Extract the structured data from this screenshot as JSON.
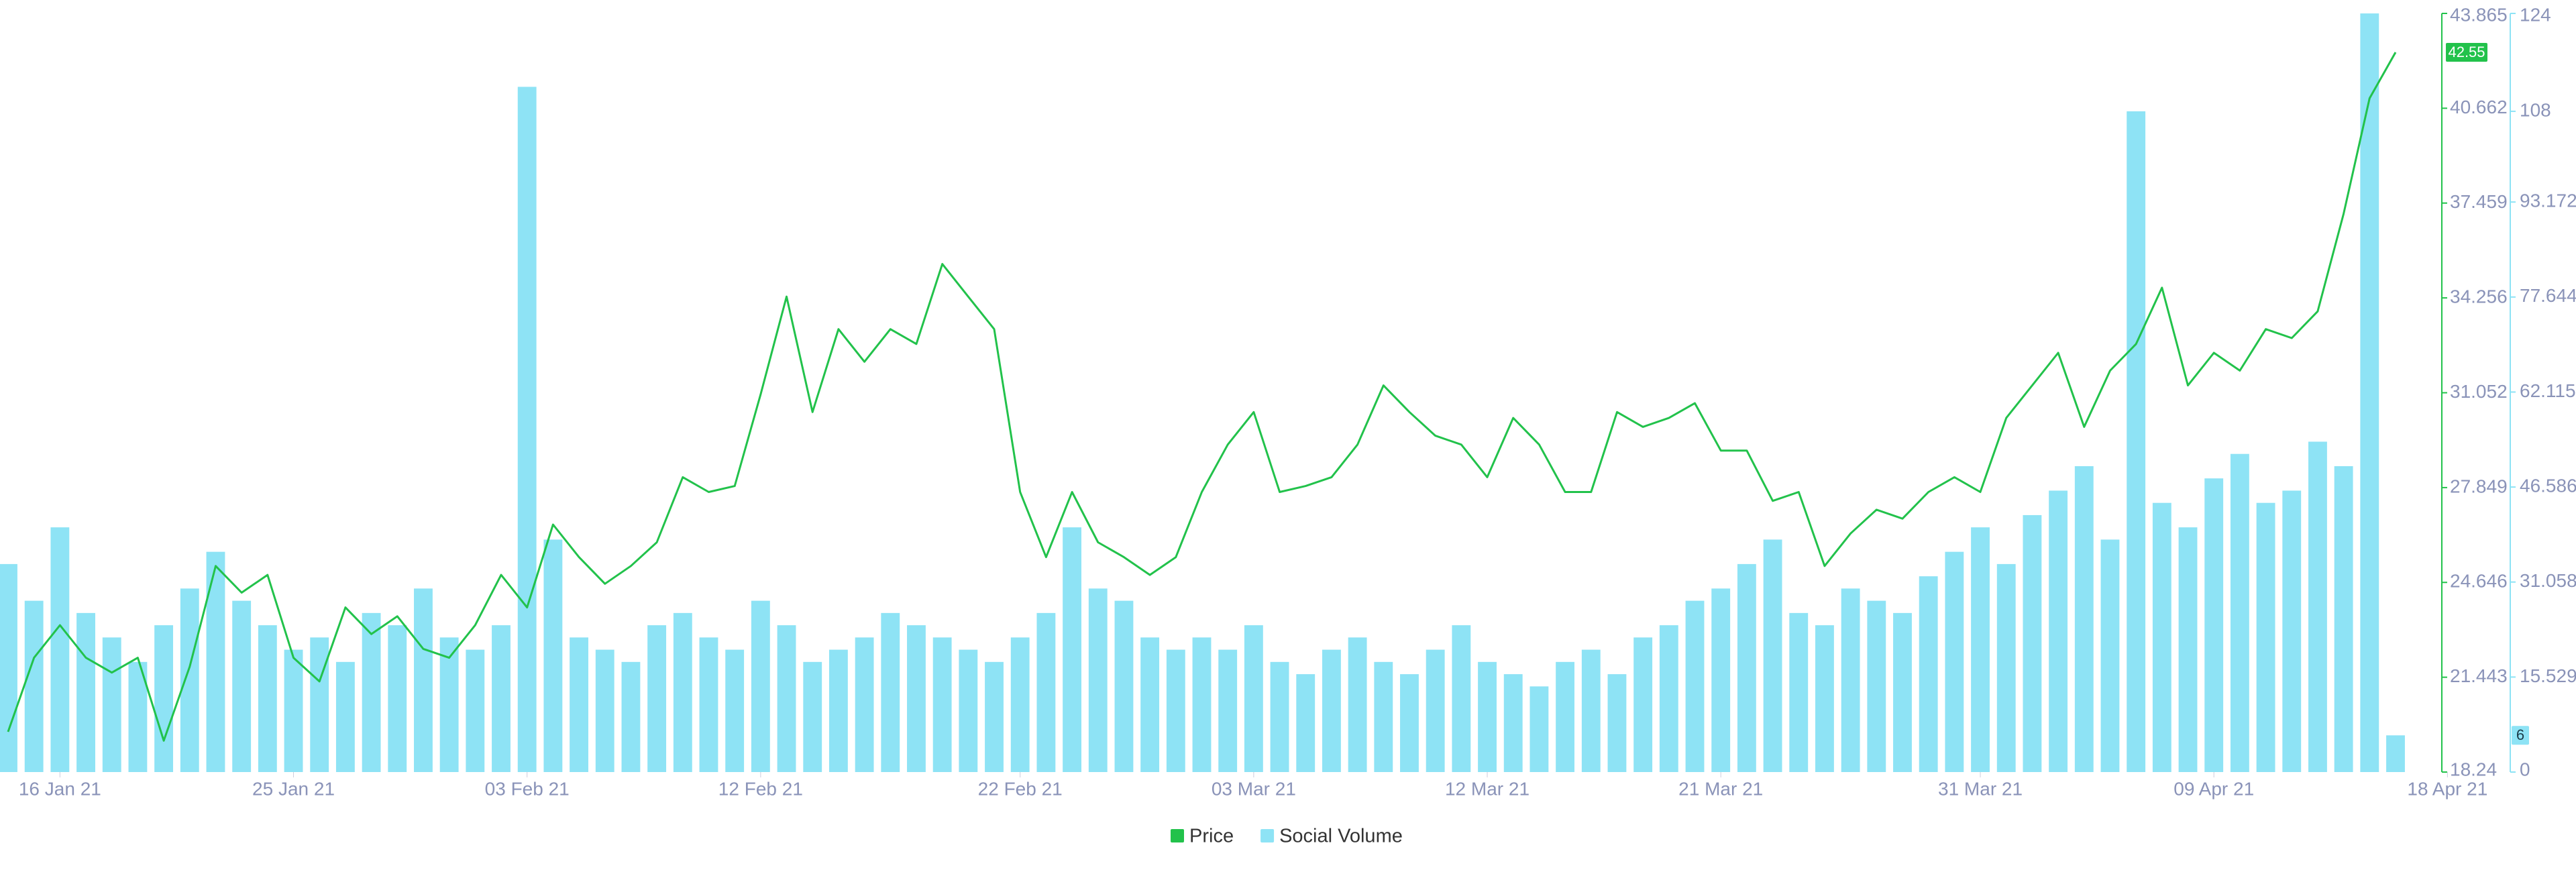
{
  "chart_data": {
    "type": "combo",
    "x": [
      "2021-01-14",
      "2021-01-15",
      "2021-01-16",
      "2021-01-17",
      "2021-01-18",
      "2021-01-19",
      "2021-01-20",
      "2021-01-21",
      "2021-01-22",
      "2021-01-23",
      "2021-01-24",
      "2021-01-25",
      "2021-01-26",
      "2021-01-27",
      "2021-01-28",
      "2021-01-29",
      "2021-01-30",
      "2021-01-31",
      "2021-02-01",
      "2021-02-02",
      "2021-02-03",
      "2021-02-04",
      "2021-02-05",
      "2021-02-06",
      "2021-02-07",
      "2021-02-08",
      "2021-02-09",
      "2021-02-10",
      "2021-02-11",
      "2021-02-12",
      "2021-02-13",
      "2021-02-14",
      "2021-02-15",
      "2021-02-16",
      "2021-02-17",
      "2021-02-18",
      "2021-02-19",
      "2021-02-20",
      "2021-02-21",
      "2021-02-22",
      "2021-02-23",
      "2021-02-24",
      "2021-02-25",
      "2021-02-26",
      "2021-02-27",
      "2021-02-28",
      "2021-03-01",
      "2021-03-02",
      "2021-03-03",
      "2021-03-04",
      "2021-03-05",
      "2021-03-06",
      "2021-03-07",
      "2021-03-08",
      "2021-03-09",
      "2021-03-10",
      "2021-03-11",
      "2021-03-12",
      "2021-03-13",
      "2021-03-14",
      "2021-03-15",
      "2021-03-16",
      "2021-03-17",
      "2021-03-18",
      "2021-03-19",
      "2021-03-20",
      "2021-03-21",
      "2021-03-22",
      "2021-03-23",
      "2021-03-24",
      "2021-03-25",
      "2021-03-26",
      "2021-03-27",
      "2021-03-28",
      "2021-03-29",
      "2021-03-30",
      "2021-03-31",
      "2021-04-01",
      "2021-04-02",
      "2021-04-03",
      "2021-04-04",
      "2021-04-05",
      "2021-04-06",
      "2021-04-07",
      "2021-04-08",
      "2021-04-09",
      "2021-04-10",
      "2021-04-11",
      "2021-04-12",
      "2021-04-13",
      "2021-04-14",
      "2021-04-15",
      "2021-04-16"
    ],
    "series": [
      {
        "name": "Price",
        "type": "line",
        "axis": "y",
        "color": "#22c24b",
        "values": [
          19.6,
          22.1,
          23.2,
          22.1,
          21.6,
          22.1,
          19.3,
          21.8,
          25.2,
          24.3,
          24.9,
          22.1,
          21.3,
          23.8,
          22.9,
          23.5,
          22.4,
          22.1,
          23.2,
          24.9,
          23.8,
          26.6,
          25.5,
          24.6,
          25.2,
          26.0,
          28.2,
          27.7,
          27.9,
          31.0,
          34.3,
          30.4,
          33.2,
          32.1,
          33.2,
          32.7,
          35.4,
          34.3,
          33.2,
          27.7,
          25.5,
          27.7,
          26.0,
          25.5,
          24.9,
          25.5,
          27.7,
          29.3,
          30.4,
          27.7,
          27.9,
          28.2,
          29.3,
          31.3,
          30.4,
          29.6,
          29.3,
          28.2,
          30.2,
          29.3,
          27.7,
          27.7,
          30.4,
          29.9,
          30.2,
          30.7,
          29.1,
          29.1,
          27.4,
          27.7,
          25.2,
          26.3,
          27.1,
          26.8,
          27.7,
          28.2,
          27.7,
          30.2,
          31.3,
          32.4,
          29.9,
          31.8,
          32.7,
          34.6,
          31.3,
          32.4,
          31.8,
          33.2,
          32.9,
          33.8,
          37.1,
          41.0,
          42.55
        ]
      },
      {
        "name": "Social Volume",
        "type": "bar",
        "axis": "y2",
        "color": "#8ee3f5",
        "values": [
          34,
          28,
          40,
          26,
          22,
          18,
          24,
          30,
          36,
          28,
          24,
          20,
          22,
          18,
          26,
          24,
          30,
          22,
          20,
          24,
          112,
          38,
          22,
          20,
          18,
          24,
          26,
          22,
          20,
          28,
          24,
          18,
          20,
          22,
          26,
          24,
          22,
          20,
          18,
          22,
          26,
          40,
          30,
          28,
          22,
          20,
          22,
          20,
          24,
          18,
          16,
          20,
          22,
          18,
          16,
          20,
          24,
          18,
          16,
          14,
          18,
          20,
          16,
          22,
          24,
          28,
          30,
          34,
          38,
          26,
          24,
          30,
          28,
          26,
          32,
          36,
          40,
          34,
          42,
          46,
          50,
          38,
          108,
          44,
          40,
          48,
          52,
          44,
          46,
          54,
          50,
          124,
          6
        ]
      }
    ],
    "xlim": [
      "2021-01-14",
      "2021-04-16"
    ],
    "xticks": [
      {
        "value": "2021-01-16",
        "label": "16 Jan 21"
      },
      {
        "value": "2021-01-25",
        "label": "25 Jan 21"
      },
      {
        "value": "2021-02-03",
        "label": "03 Feb 21"
      },
      {
        "value": "2021-02-12",
        "label": "12 Feb 21"
      },
      {
        "value": "2021-02-22",
        "label": "22 Feb 21"
      },
      {
        "value": "2021-03-03",
        "label": "03 Mar 21"
      },
      {
        "value": "2021-03-12",
        "label": "12 Mar 21"
      },
      {
        "value": "2021-03-21",
        "label": "21 Mar 21"
      },
      {
        "value": "2021-03-31",
        "label": "31 Mar 21"
      },
      {
        "value": "2021-04-09",
        "label": "09 Apr 21"
      },
      {
        "value": "2021-04-18",
        "label": "18 Apr 21"
      }
    ],
    "ylim": [
      18.24,
      43.865
    ],
    "yticks": [
      18.24,
      21.443,
      24.646,
      27.849,
      31.052,
      34.256,
      37.459,
      40.662,
      43.865
    ],
    "y2lim": [
      0,
      124
    ],
    "y2ticks": [
      0,
      15.529,
      31.058,
      46.586,
      62.115,
      77.644,
      93.172,
      108,
      124
    ],
    "legend": "bottom"
  }
}
